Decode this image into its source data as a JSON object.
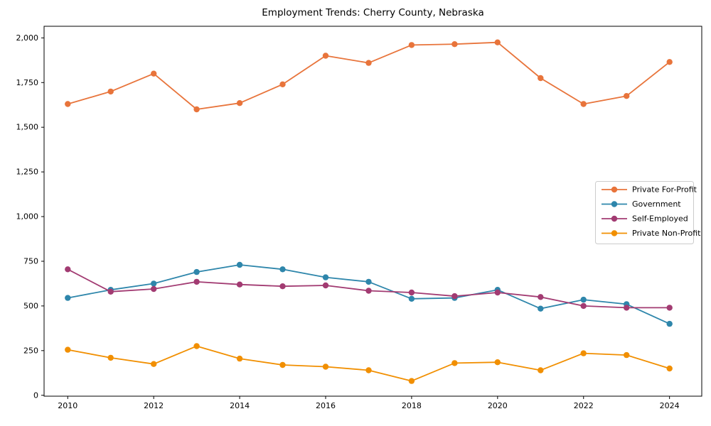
{
  "page": {
    "background": "#ffffff"
  },
  "chart_data": {
    "type": "line",
    "title": "Employment Trends: Cherry County, Nebraska",
    "xlabel": "",
    "ylabel": "",
    "grid": false,
    "legend_position": "center-right",
    "x": [
      2010,
      2011,
      2012,
      2013,
      2014,
      2015,
      2016,
      2017,
      2018,
      2019,
      2020,
      2021,
      2022,
      2023,
      2024
    ],
    "series": [
      {
        "name": "Private For-Profit",
        "color": "#e8743b",
        "values": [
          1630,
          1700,
          1800,
          1600,
          1635,
          1740,
          1900,
          1860,
          1960,
          1965,
          1975,
          1775,
          1630,
          1675,
          1865
        ]
      },
      {
        "name": "Government",
        "color": "#2e86ab",
        "values": [
          545,
          590,
          625,
          690,
          730,
          705,
          660,
          635,
          540,
          545,
          590,
          485,
          535,
          510,
          400
        ]
      },
      {
        "name": "Self-Employed",
        "color": "#a23b72",
        "values": [
          705,
          580,
          595,
          635,
          620,
          610,
          615,
          585,
          575,
          555,
          575,
          550,
          500,
          490,
          490
        ]
      },
      {
        "name": "Private Non-Profit",
        "color": "#f18f01",
        "values": [
          255,
          210,
          175,
          275,
          205,
          170,
          160,
          140,
          80,
          180,
          185,
          140,
          235,
          225,
          150
        ]
      }
    ],
    "xlim": [
      2009.45,
      2024.75
    ],
    "ylim": [
      -5,
      2065
    ],
    "x_tick_values": [
      2010,
      2012,
      2014,
      2016,
      2018,
      2020,
      2022,
      2024
    ],
    "x_tick_labels": [
      "2010",
      "2012",
      "2014",
      "2016",
      "2018",
      "2020",
      "2022",
      "2024"
    ],
    "y_tick_values": [
      0,
      250,
      500,
      750,
      1000,
      1250,
      1500,
      1750,
      2000
    ],
    "y_tick_labels": [
      "0",
      "250",
      "500",
      "750",
      "1,000",
      "1,250",
      "1,500",
      "1,750",
      "2,000"
    ],
    "frame_color": "#000000",
    "text_color": "#000000",
    "legend_border_color": "#cccccc",
    "legend_background": "#ffffff"
  }
}
